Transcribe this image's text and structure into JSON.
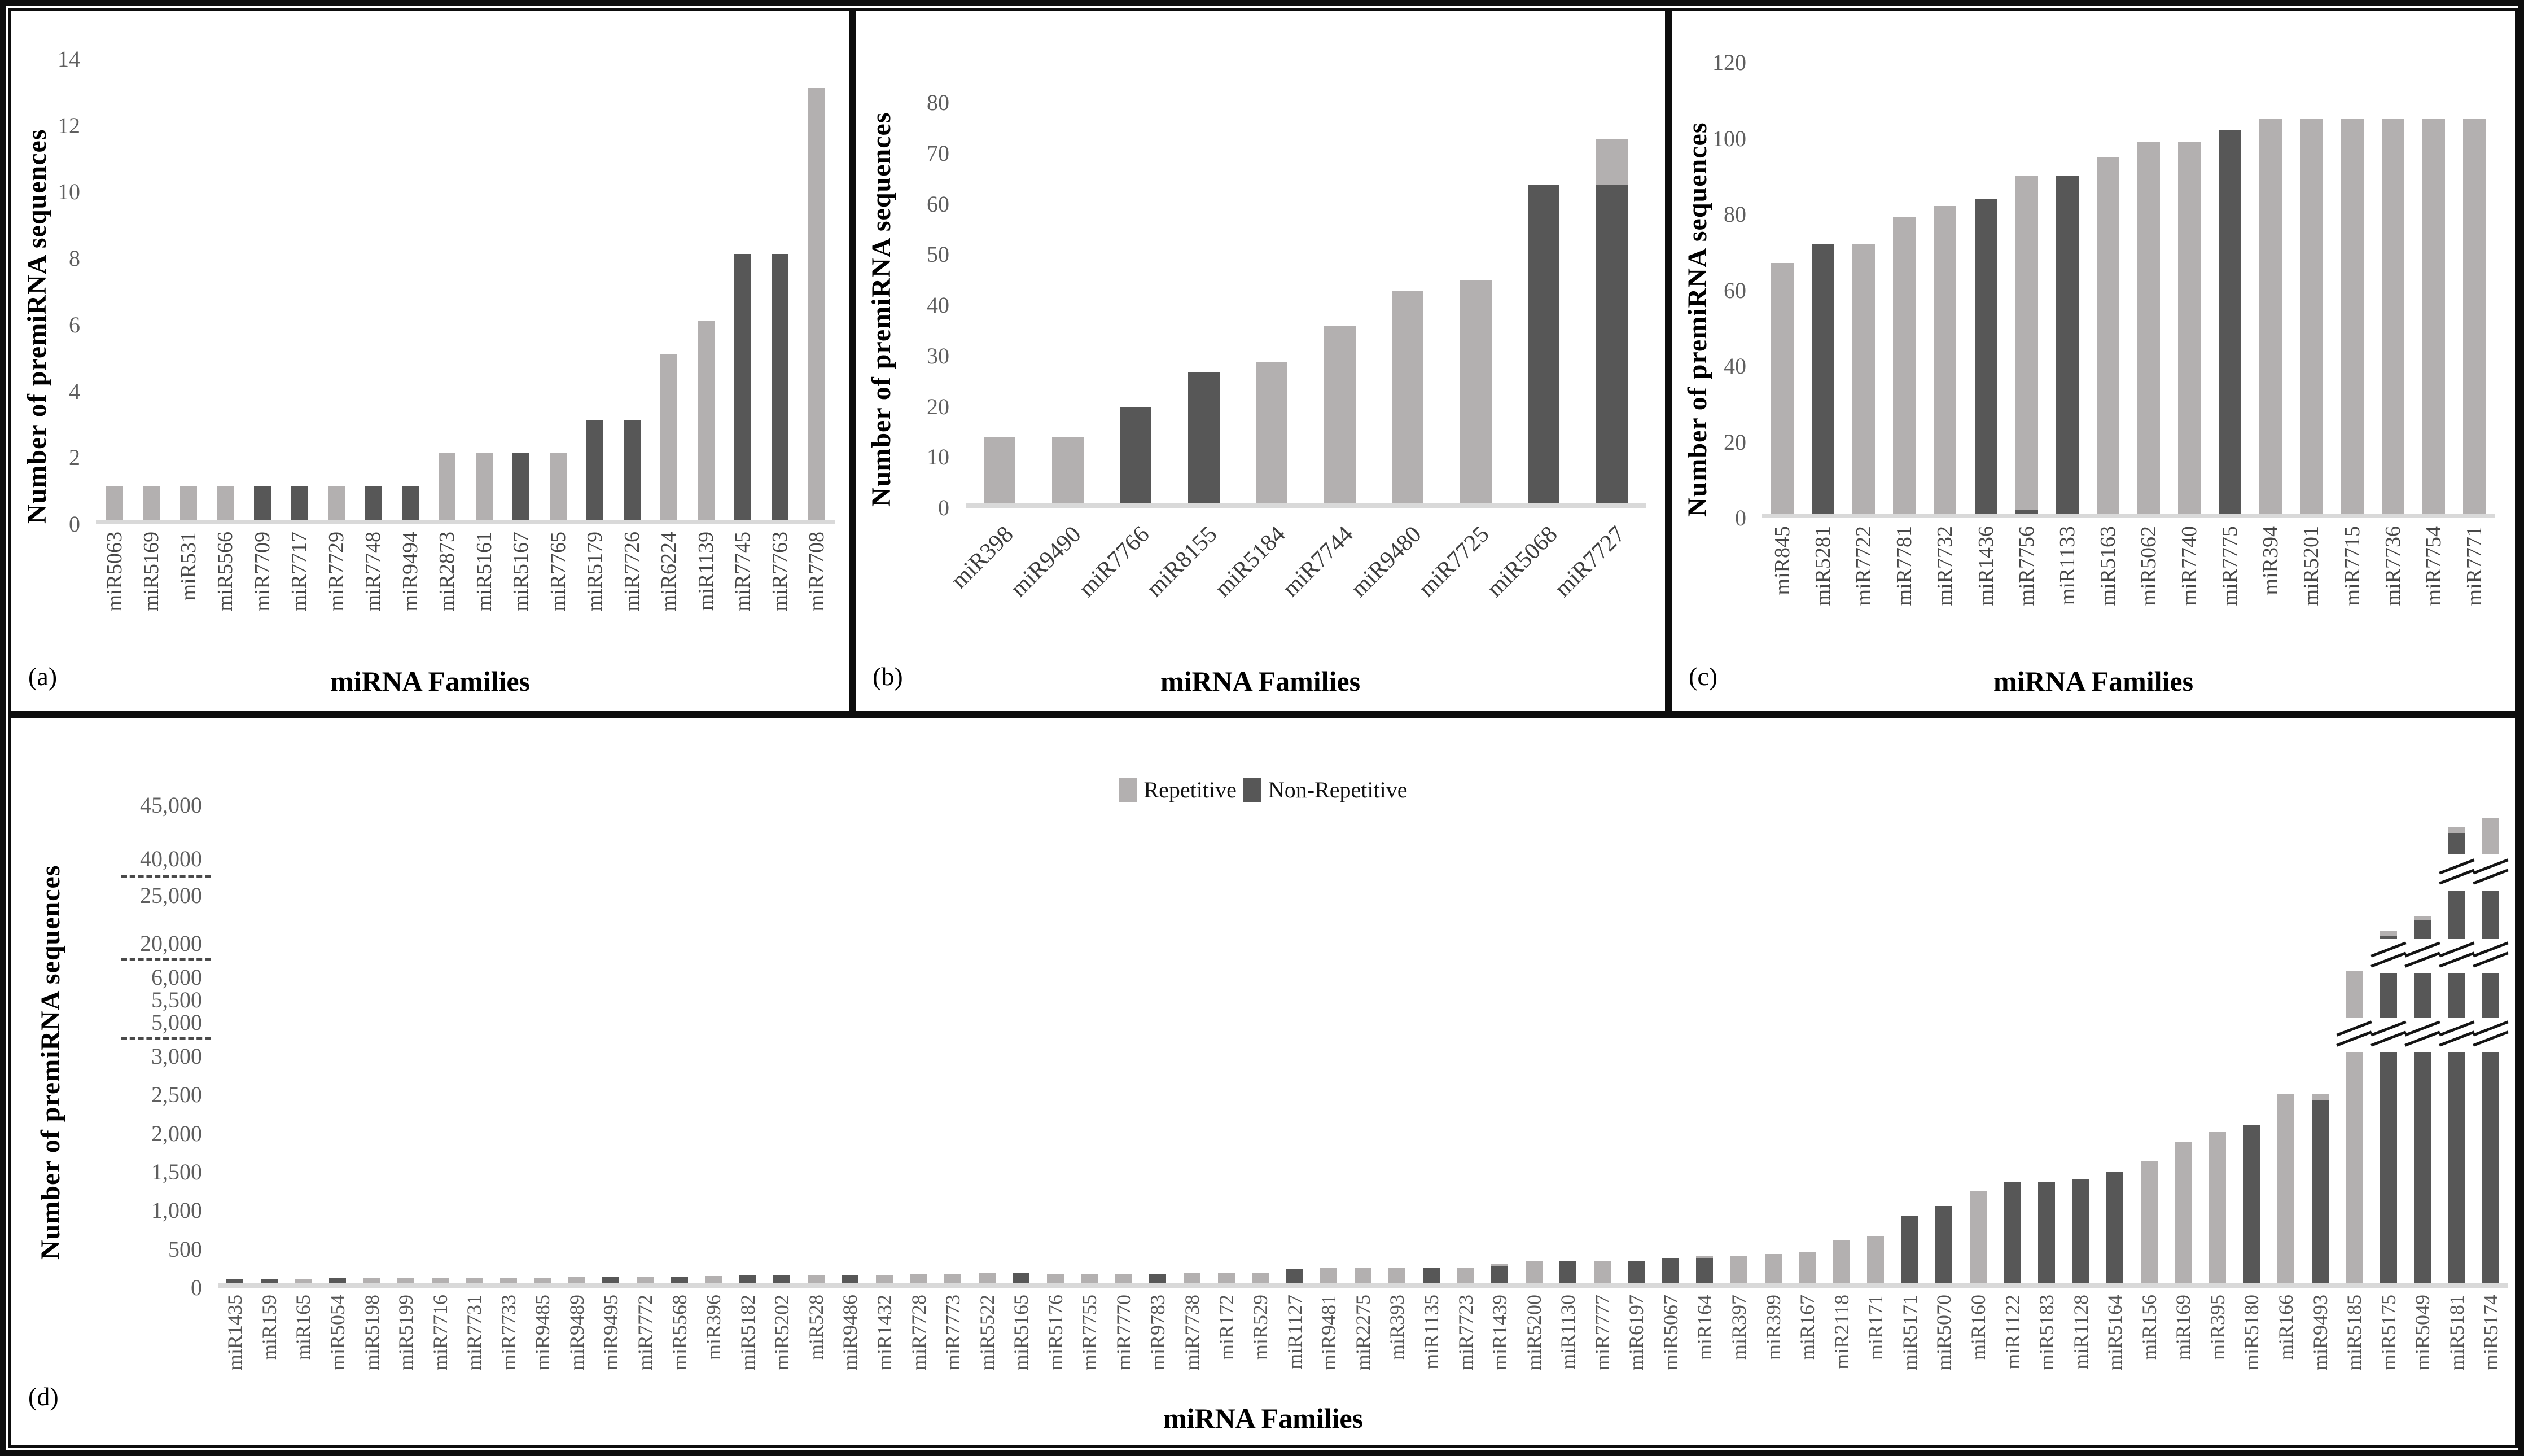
{
  "figure": {
    "ylabel": "Number of premiRNA sequences",
    "xlabel": "miRNA Families",
    "legend": {
      "repetitive": "Repetitive",
      "non_repetitive": "Non-Repetitive"
    },
    "colors": {
      "repetitive": "#b3b0b0",
      "non_repetitive": "#575757",
      "baseline": "#d9d9d9"
    }
  },
  "chart_data": [
    {
      "id": "a",
      "caption": "(a)",
      "type": "bar",
      "title": "",
      "xlabel": "miRNA Families",
      "ylabel": "Number of premiRNA sequences",
      "ylim": [
        0,
        14
      ],
      "grid": false,
      "legend_position": "none",
      "yticks": [
        {
          "v": 0,
          "label": "0"
        },
        {
          "v": 2,
          "label": "2"
        },
        {
          "v": 4,
          "label": "4"
        },
        {
          "v": 6,
          "label": "6"
        },
        {
          "v": 8,
          "label": "8"
        },
        {
          "v": 10,
          "label": "10"
        },
        {
          "v": 12,
          "label": "12"
        },
        {
          "v": 14,
          "label": "14"
        }
      ],
      "bars": [
        {
          "name": "miR5063",
          "rep": 1,
          "nonrep": 0
        },
        {
          "name": "miR5169",
          "rep": 1,
          "nonrep": 0
        },
        {
          "name": "miR531",
          "rep": 1,
          "nonrep": 0
        },
        {
          "name": "miR5566",
          "rep": 1,
          "nonrep": 0
        },
        {
          "name": "miR7709",
          "rep": 0,
          "nonrep": 1
        },
        {
          "name": "miR7717",
          "rep": 0,
          "nonrep": 1
        },
        {
          "name": "miR7729",
          "rep": 1,
          "nonrep": 0
        },
        {
          "name": "miR7748",
          "rep": 0,
          "nonrep": 1
        },
        {
          "name": "miR9494",
          "rep": 0,
          "nonrep": 1
        },
        {
          "name": "miR2873",
          "rep": 2,
          "nonrep": 0
        },
        {
          "name": "miR5161",
          "rep": 2,
          "nonrep": 0
        },
        {
          "name": "miR5167",
          "rep": 0,
          "nonrep": 2
        },
        {
          "name": "miR7765",
          "rep": 2,
          "nonrep": 0
        },
        {
          "name": "miR5179",
          "rep": 0,
          "nonrep": 3
        },
        {
          "name": "miR7726",
          "rep": 0,
          "nonrep": 3
        },
        {
          "name": "miR6224",
          "rep": 5,
          "nonrep": 0
        },
        {
          "name": "miR1139",
          "rep": 6,
          "nonrep": 0
        },
        {
          "name": "miR7745",
          "rep": 0,
          "nonrep": 8
        },
        {
          "name": "miR7763",
          "rep": 0,
          "nonrep": 8
        },
        {
          "name": "miR7708",
          "rep": 13,
          "nonrep": 0
        }
      ]
    },
    {
      "id": "b",
      "caption": "(b)",
      "type": "bar",
      "title": "",
      "xlabel": "miRNA Families",
      "ylabel": "Number of premiRNA sequences",
      "ylim": [
        0,
        80
      ],
      "grid": false,
      "legend_position": "none",
      "yticks": [
        {
          "v": 0,
          "label": "0"
        },
        {
          "v": 10,
          "label": "10"
        },
        {
          "v": 20,
          "label": "20"
        },
        {
          "v": 30,
          "label": "30"
        },
        {
          "v": 40,
          "label": "40"
        },
        {
          "v": 50,
          "label": "50"
        },
        {
          "v": 60,
          "label": "60"
        },
        {
          "v": 70,
          "label": "70"
        },
        {
          "v": 80,
          "label": "80"
        }
      ],
      "bars": [
        {
          "name": "miR398",
          "rep": 13,
          "nonrep": 0
        },
        {
          "name": "miR9490",
          "rep": 13,
          "nonrep": 0
        },
        {
          "name": "miR7766",
          "rep": 0,
          "nonrep": 19
        },
        {
          "name": "miR8155",
          "rep": 0,
          "nonrep": 26
        },
        {
          "name": "miR5184",
          "rep": 28,
          "nonrep": 0
        },
        {
          "name": "miR7744",
          "rep": 35,
          "nonrep": 0
        },
        {
          "name": "miR9480",
          "rep": 42,
          "nonrep": 0
        },
        {
          "name": "miR7725",
          "rep": 44,
          "nonrep": 0
        },
        {
          "name": "miR5068",
          "rep": 0,
          "nonrep": 63
        },
        {
          "name": "miR7727",
          "rep": 9,
          "nonrep": 63
        }
      ]
    },
    {
      "id": "c",
      "caption": "(c)",
      "type": "bar",
      "title": "",
      "xlabel": "miRNA Families",
      "ylabel": "Number of premiRNA sequences",
      "ylim": [
        0,
        120
      ],
      "grid": false,
      "legend_position": "none",
      "yticks": [
        {
          "v": 0,
          "label": "0"
        },
        {
          "v": 20,
          "label": "20"
        },
        {
          "v": 40,
          "label": "40"
        },
        {
          "v": 60,
          "label": "60"
        },
        {
          "v": 80,
          "label": "80"
        },
        {
          "v": 100,
          "label": "100"
        },
        {
          "v": 120,
          "label": "120"
        }
      ],
      "bars": [
        {
          "name": "miR845",
          "rep": 66,
          "nonrep": 0
        },
        {
          "name": "miR5281",
          "rep": 0,
          "nonrep": 71
        },
        {
          "name": "miR7722",
          "rep": 71,
          "nonrep": 0
        },
        {
          "name": "miR7781",
          "rep": 78,
          "nonrep": 0
        },
        {
          "name": "miR7732",
          "rep": 81,
          "nonrep": 0
        },
        {
          "name": "miR1436",
          "rep": 0,
          "nonrep": 83
        },
        {
          "name": "miR7756",
          "rep": 88,
          "nonrep": 1
        },
        {
          "name": "miR1133",
          "rep": 0,
          "nonrep": 89
        },
        {
          "name": "miR5163",
          "rep": 94,
          "nonrep": 0
        },
        {
          "name": "miR5062",
          "rep": 98,
          "nonrep": 0
        },
        {
          "name": "miR7740",
          "rep": 98,
          "nonrep": 0
        },
        {
          "name": "miR7775",
          "rep": 0,
          "nonrep": 101
        },
        {
          "name": "miR394",
          "rep": 104,
          "nonrep": 0
        },
        {
          "name": "miR5201",
          "rep": 104,
          "nonrep": 0
        },
        {
          "name": "miR7715",
          "rep": 104,
          "nonrep": 0
        },
        {
          "name": "miR7736",
          "rep": 104,
          "nonrep": 0
        },
        {
          "name": "miR7754",
          "rep": 104,
          "nonrep": 0
        },
        {
          "name": "miR7771",
          "rep": 104,
          "nonrep": 0
        }
      ]
    },
    {
      "id": "d",
      "caption": "(d)",
      "type": "bar",
      "title": "",
      "xlabel": "miRNA Families",
      "ylabel": "Number of premiRNA sequences",
      "ylim": [
        0,
        45000
      ],
      "grid": false,
      "legend_position": "top",
      "axis_breaks": [
        [
          3000,
          5000
        ],
        [
          6000,
          20000
        ],
        [
          25000,
          40000
        ]
      ],
      "yticks": [
        {
          "v": 0,
          "label": "0"
        },
        {
          "v": 500,
          "label": "500"
        },
        {
          "v": 1000,
          "label": "1,000"
        },
        {
          "v": 1500,
          "label": "1,500"
        },
        {
          "v": 2000,
          "label": "2,000"
        },
        {
          "v": 2500,
          "label": "2,500"
        },
        {
          "v": 3000,
          "label": "3,000"
        },
        {
          "v": 5000,
          "label": "5,000"
        },
        {
          "v": 5500,
          "label": "5,500"
        },
        {
          "v": 6000,
          "label": "6,000"
        },
        {
          "v": 20000,
          "label": "20,000"
        },
        {
          "v": 25000,
          "label": "25,000"
        },
        {
          "v": 40000,
          "label": "40,000"
        },
        {
          "v": 45000,
          "label": "45,000"
        }
      ],
      "bars": [
        {
          "name": "miR1435",
          "rep": 0,
          "nonrep": 55
        },
        {
          "name": "miR159",
          "rep": 0,
          "nonrep": 60
        },
        {
          "name": "miR165",
          "rep": 60,
          "nonrep": 0
        },
        {
          "name": "miR5054",
          "rep": 0,
          "nonrep": 65
        },
        {
          "name": "miR5198",
          "rep": 65,
          "nonrep": 0
        },
        {
          "name": "miR5199",
          "rep": 65,
          "nonrep": 0
        },
        {
          "name": "miR7716",
          "rep": 70,
          "nonrep": 0
        },
        {
          "name": "miR7731",
          "rep": 70,
          "nonrep": 0
        },
        {
          "name": "miR7733",
          "rep": 75,
          "nonrep": 0
        },
        {
          "name": "miR9485",
          "rep": 75,
          "nonrep": 0
        },
        {
          "name": "miR9489",
          "rep": 80,
          "nonrep": 0
        },
        {
          "name": "miR9495",
          "rep": 0,
          "nonrep": 80
        },
        {
          "name": "miR7772",
          "rep": 85,
          "nonrep": 0
        },
        {
          "name": "miR5568",
          "rep": 0,
          "nonrep": 90
        },
        {
          "name": "miR396",
          "rep": 95,
          "nonrep": 0
        },
        {
          "name": "miR5182",
          "rep": 0,
          "nonrep": 100
        },
        {
          "name": "miR5202",
          "rep": 0,
          "nonrep": 105
        },
        {
          "name": "miR528",
          "rep": 105,
          "nonrep": 0
        },
        {
          "name": "miR9486",
          "rep": 0,
          "nonrep": 110
        },
        {
          "name": "miR1432",
          "rep": 110,
          "nonrep": 0
        },
        {
          "name": "miR7728",
          "rep": 115,
          "nonrep": 0
        },
        {
          "name": "miR7773",
          "rep": 120,
          "nonrep": 0
        },
        {
          "name": "miR5522",
          "rep": 130,
          "nonrep": 0
        },
        {
          "name": "miR5165",
          "rep": 0,
          "nonrep": 130
        },
        {
          "name": "miR5176",
          "rep": 125,
          "nonrep": 0
        },
        {
          "name": "miR7755",
          "rep": 125,
          "nonrep": 0
        },
        {
          "name": "miR7770",
          "rep": 125,
          "nonrep": 0
        },
        {
          "name": "miR9783",
          "rep": 0,
          "nonrep": 125
        },
        {
          "name": "miR7738",
          "rep": 140,
          "nonrep": 0
        },
        {
          "name": "miR172",
          "rep": 140,
          "nonrep": 0
        },
        {
          "name": "miR529",
          "rep": 140,
          "nonrep": 0
        },
        {
          "name": "miR1127",
          "rep": 0,
          "nonrep": 185
        },
        {
          "name": "miR9481",
          "rep": 200,
          "nonrep": 0
        },
        {
          "name": "miR2275",
          "rep": 200,
          "nonrep": 0
        },
        {
          "name": "miR393",
          "rep": 195,
          "nonrep": 0
        },
        {
          "name": "miR1135",
          "rep": 0,
          "nonrep": 195
        },
        {
          "name": "miR7723",
          "rep": 195,
          "nonrep": 0
        },
        {
          "name": "miR1439",
          "rep": 25,
          "nonrep": 225
        },
        {
          "name": "miR5200",
          "rep": 295,
          "nonrep": 0
        },
        {
          "name": "miR1130",
          "rep": 0,
          "nonrep": 290
        },
        {
          "name": "miR7777",
          "rep": 290,
          "nonrep": 0
        },
        {
          "name": "miR6197",
          "rep": 0,
          "nonrep": 285
        },
        {
          "name": "miR5067",
          "rep": 0,
          "nonrep": 320
        },
        {
          "name": "miR164",
          "rep": 30,
          "nonrep": 330
        },
        {
          "name": "miR397",
          "rep": 350,
          "nonrep": 0
        },
        {
          "name": "miR399",
          "rep": 380,
          "nonrep": 0
        },
        {
          "name": "miR167",
          "rep": 400,
          "nonrep": 0
        },
        {
          "name": "miR2118",
          "rep": 560,
          "nonrep": 0
        },
        {
          "name": "miR171",
          "rep": 610,
          "nonrep": 0
        },
        {
          "name": "miR5171",
          "rep": 0,
          "nonrep": 880
        },
        {
          "name": "miR5070",
          "rep": 0,
          "nonrep": 1000
        },
        {
          "name": "miR160",
          "rep": 1190,
          "nonrep": 0
        },
        {
          "name": "miR1122",
          "rep": 0,
          "nonrep": 1310
        },
        {
          "name": "miR5183",
          "rep": 0,
          "nonrep": 1310
        },
        {
          "name": "miR1128",
          "rep": 0,
          "nonrep": 1350
        },
        {
          "name": "miR5164",
          "rep": 0,
          "nonrep": 1450
        },
        {
          "name": "miR156",
          "rep": 1590,
          "nonrep": 0
        },
        {
          "name": "miR169",
          "rep": 1840,
          "nonrep": 0
        },
        {
          "name": "miR395",
          "rep": 1960,
          "nonrep": 0
        },
        {
          "name": "miR5180",
          "rep": 0,
          "nonrep": 2050
        },
        {
          "name": "miR166",
          "rep": 2450,
          "nonrep": 0
        },
        {
          "name": "miR9493",
          "rep": 70,
          "nonrep": 2380
        },
        {
          "name": "miR5185",
          "rep": 6050,
          "nonrep": 0
        },
        {
          "name": "miR5175",
          "rep": 500,
          "nonrep": 20300
        },
        {
          "name": "miR5049",
          "rep": 400,
          "nonrep": 22000
        },
        {
          "name": "miR5181",
          "rep": 600,
          "nonrep": 42000
        },
        {
          "name": "miR5174",
          "rep": 4400,
          "nonrep": 39000
        }
      ]
    }
  ]
}
